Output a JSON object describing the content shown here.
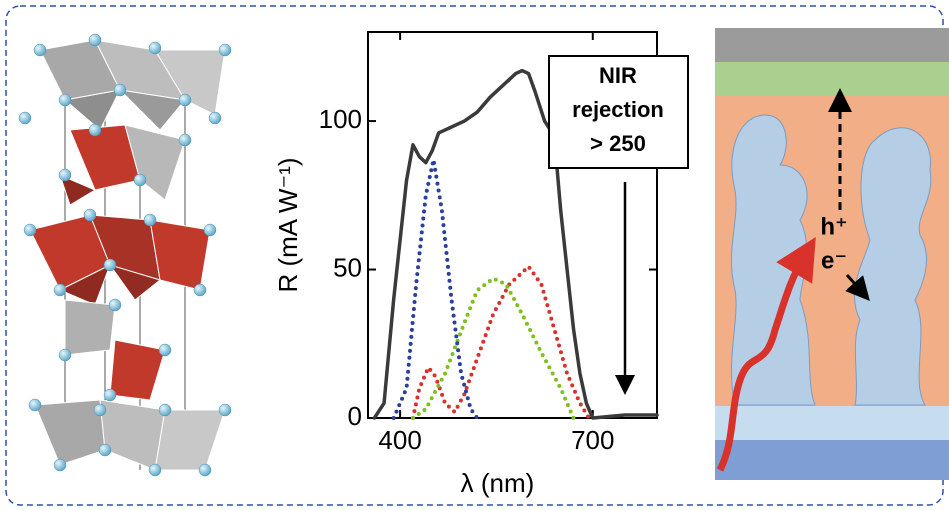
{
  "chart_data": {
    "type": "line",
    "xlabel": "λ (nm)",
    "ylabel": "R (mA W⁻¹)",
    "xlim": [
      350,
      800
    ],
    "ylim": [
      0,
      130
    ],
    "xticks": [
      400,
      700
    ],
    "yticks": [
      0,
      50,
      100
    ],
    "annotation": [
      "NIR",
      "rejection",
      "> 250"
    ],
    "series": [
      {
        "color": "#3a3a3a",
        "style": "solid",
        "x": [
          360,
          375,
          390,
          400,
          410,
          420,
          430,
          440,
          450,
          460,
          480,
          500,
          520,
          540,
          560,
          580,
          590,
          600,
          610,
          625,
          640,
          650,
          660,
          670,
          680,
          690,
          700,
          750,
          800
        ],
        "values": [
          0,
          5,
          40,
          60,
          80,
          92,
          88,
          86,
          90,
          96,
          98,
          100,
          103,
          108,
          112,
          116,
          117,
          116,
          110,
          100,
          95,
          70,
          50,
          30,
          15,
          5,
          0,
          1,
          1
        ]
      },
      {
        "color": "#2a3f9e",
        "style": "dotted",
        "x": [
          390,
          410,
          425,
          440,
          452,
          465,
          480,
          495,
          510,
          520
        ],
        "values": [
          0,
          10,
          45,
          75,
          87,
          70,
          40,
          15,
          3,
          0
        ]
      },
      {
        "color": "#7ec11f",
        "style": "dotted",
        "x": [
          420,
          440,
          470,
          500,
          520,
          545,
          565,
          590,
          620,
          650,
          670
        ],
        "values": [
          0,
          3,
          15,
          32,
          43,
          47,
          45,
          35,
          22,
          10,
          0
        ]
      },
      {
        "color": "#d8322a",
        "style": "dotted",
        "x": [
          420,
          430,
          444,
          455,
          470,
          485,
          500,
          520,
          545,
          570,
          600,
          620,
          640,
          660,
          680,
          694
        ],
        "values": [
          0,
          10,
          17,
          14,
          5,
          2,
          8,
          20,
          35,
          45,
          51,
          45,
          30,
          15,
          5,
          0
        ]
      }
    ]
  },
  "illustration": {
    "labels": [
      "h⁺",
      "e⁻"
    ]
  }
}
